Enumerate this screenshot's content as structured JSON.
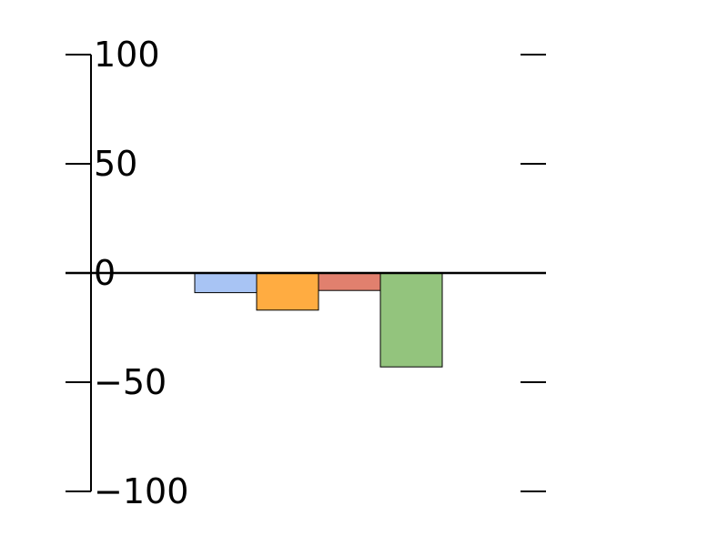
{
  "chart_data": {
    "type": "bar",
    "categories": [
      "",
      "",
      "",
      ""
    ],
    "values": [
      -9,
      -17,
      -8,
      -43
    ],
    "colors": [
      "#a8c4f4",
      "#ffac41",
      "#e1806e",
      "#93c47d"
    ],
    "ylim": [
      -100,
      100
    ],
    "yticks": [
      100,
      50,
      0,
      -50,
      -100
    ],
    "ytick_labels": [
      "100",
      "50",
      "0",
      "−50",
      "−100"
    ],
    "grid": false,
    "legend": "none"
  }
}
